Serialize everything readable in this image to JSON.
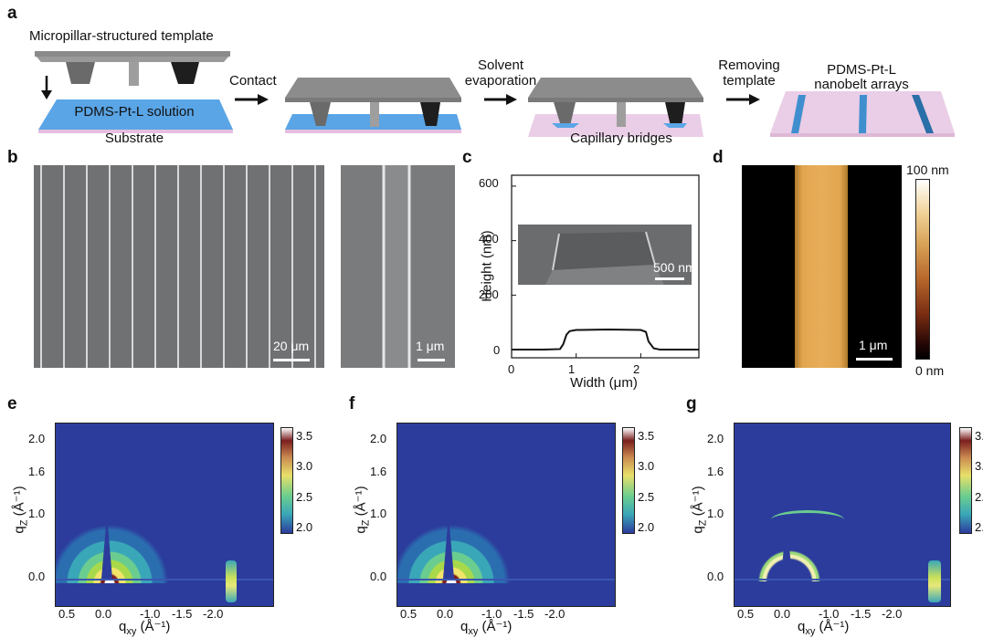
{
  "panels": {
    "a": {
      "label": "a",
      "template_label": "Micropillar-structured template",
      "solution_label": "PDMS-Pt-L solution",
      "substrate_label": "Substrate",
      "step1": "Contact",
      "step2_line1": "Solvent",
      "step2_line2": "evaporation",
      "capillary_label": "Capillary bridges",
      "step3_line1": "Removing",
      "step3_line2": "template",
      "result_line1": "PDMS-Pt-L",
      "result_line2": "nanobelt arrays"
    },
    "b": {
      "label": "b",
      "scale_left": "20 μm",
      "scale_right": "1 μm"
    },
    "c": {
      "label": "c",
      "inset_scale": "500 nm",
      "xlabel": "Width (μm)",
      "ylabel": "Height (nm)",
      "yticks": [
        "600",
        "400",
        "200",
        "0"
      ],
      "xticks": [
        "0",
        "1",
        "2"
      ]
    },
    "d": {
      "label": "d",
      "scale": "1 μm",
      "colorbar_max": "100 nm",
      "colorbar_min": "0 nm"
    },
    "giwaxs": [
      {
        "label": "e",
        "variant": "e"
      },
      {
        "label": "f",
        "variant": "f"
      },
      {
        "label": "g",
        "variant": "g"
      }
    ],
    "giwaxs_axes": {
      "ylabel_main": "q",
      "ylabel_sub": "Z",
      "ylabel_unit": " (Å⁻¹)",
      "xlabel_main": "q",
      "xlabel_sub": "xy",
      "xlabel_unit": " (Å⁻¹)",
      "yticks": [
        "2.0",
        "1.6",
        "1.0",
        "0.0"
      ],
      "xticks": [
        "0.5",
        "0.0",
        "-1.0",
        "-1.5",
        "-2.0"
      ],
      "cbar_ticks": [
        "3.5",
        "3.0",
        "2.5",
        "2.0"
      ]
    }
  },
  "chart_data": [
    {
      "type": "line",
      "panel": "c",
      "xlabel": "Width (μm)",
      "ylabel": "Height (nm)",
      "xlim": [
        0,
        2.9
      ],
      "ylim": [
        -30,
        640
      ],
      "series": [
        {
          "x": [
            0,
            0.5,
            0.75,
            0.8,
            0.85,
            0.9,
            1.0,
            1.5,
            2.0,
            2.08,
            2.12,
            2.2,
            2.3,
            2.9
          ],
          "y": [
            0,
            0,
            2,
            20,
            55,
            68,
            72,
            74,
            72,
            65,
            30,
            5,
            0,
            0
          ]
        }
      ]
    }
  ]
}
